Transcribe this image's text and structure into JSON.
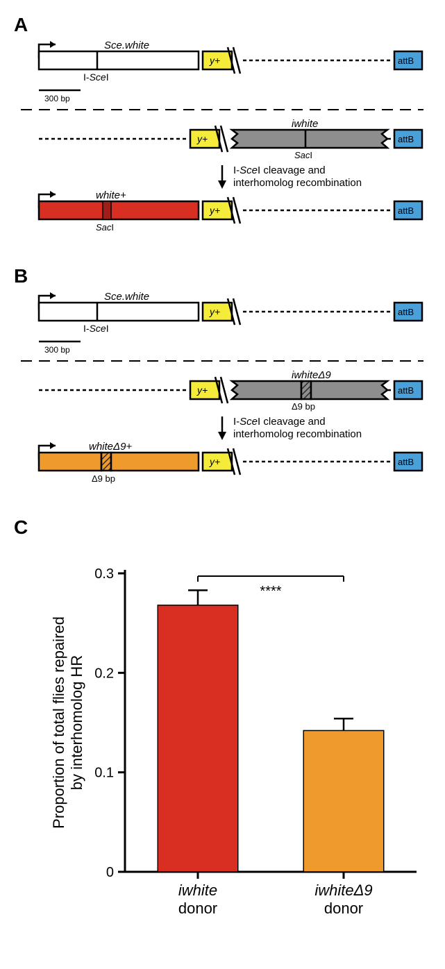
{
  "panelA": {
    "label": "A",
    "row1": {
      "gene_label": "Sce.white",
      "cut_label": "I-SceI",
      "yplus": "y+",
      "attB": "attB",
      "scale_label": "300 bp"
    },
    "row2": {
      "yplus": "y+",
      "gene_label": "iwhite",
      "cut_label": "SacI",
      "attB": "attB"
    },
    "arrow_text1": "I-SceI cleavage and",
    "arrow_text2": "interhomolog recombination",
    "row3": {
      "gene_label": "white+",
      "cut_label": "SacI",
      "yplus": "y+",
      "attB": "attB"
    }
  },
  "panelB": {
    "label": "B",
    "row1": {
      "gene_label": "Sce.white",
      "cut_label": "I-SceI",
      "yplus": "y+",
      "attB": "attB",
      "scale_label": "300 bp"
    },
    "row2": {
      "yplus": "y+",
      "gene_label": "iwhiteΔ9",
      "cut_label": "Δ9 bp",
      "attB": "attB"
    },
    "arrow_text1": "I-SceI cleavage and",
    "arrow_text2": "interhomolog recombination",
    "row3": {
      "gene_label": "whiteΔ9+",
      "cut_label": "Δ9 bp",
      "yplus": "y+",
      "attB": "attB"
    }
  },
  "panelC": {
    "label": "C",
    "chart": {
      "type": "bar",
      "categories": [
        "iwhite\ndonor",
        "iwhiteΔ9\ndonor"
      ],
      "values": [
        0.268,
        0.142
      ],
      "errors": [
        0.015,
        0.012
      ],
      "bar_colors": [
        "#d92f23",
        "#ef9a2d"
      ],
      "y_label": "Proportion of total flies repaired\nby interhomolog HR",
      "ylim": [
        0,
        0.3
      ],
      "yticks": [
        0,
        0.1,
        0.2,
        0.3
      ],
      "tick_labels": [
        "0",
        "0.1",
        "0.2",
        "0.3"
      ],
      "axis_color": "#000000",
      "axis_width": 3,
      "sig_label": "****",
      "label_fontsize": 22,
      "tick_fontsize": 20,
      "cat_fontsize": 22,
      "bar_width": 0.55
    }
  },
  "colors": {
    "white_box": "#ffffff",
    "yplus": "#f5eb3b",
    "attB": "#4aa0d8",
    "iwhite_gray": "#8e8e8e",
    "red": "#d92f23",
    "orange": "#ef9a2d",
    "hatch": "#3a3a3a",
    "stroke": "#000000"
  }
}
